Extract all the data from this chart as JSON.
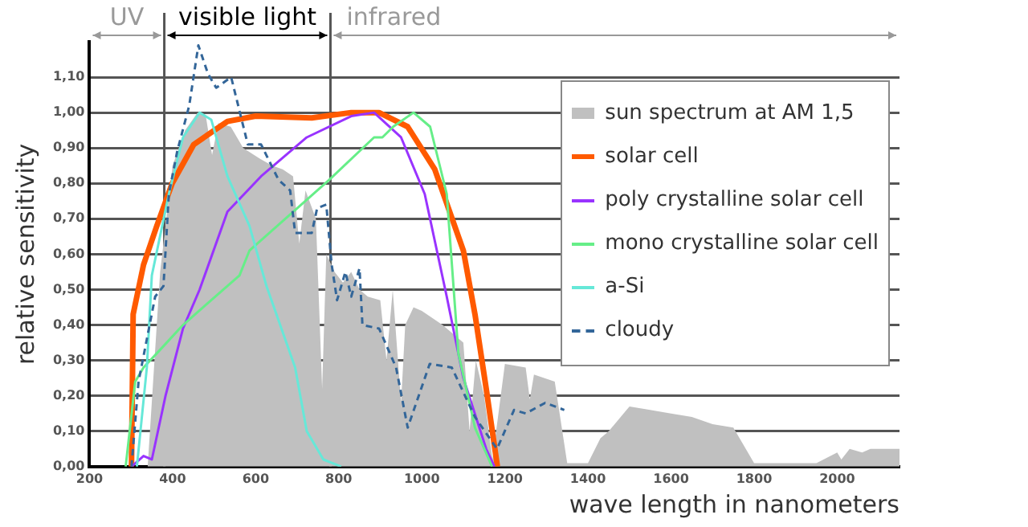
{
  "chart_data": {
    "type": "line",
    "xlabel": "wave length in nanometers",
    "ylabel": "relative sensitivity",
    "xlim": [
      200,
      2150
    ],
    "ylim": [
      0,
      1.2
    ],
    "xticks": [
      200,
      400,
      600,
      800,
      1000,
      1200,
      1400,
      1600,
      1800,
      2000
    ],
    "yticks": [
      {
        "value": 0,
        "label": "0,00"
      },
      {
        "value": 0.1,
        "label": "0,10"
      },
      {
        "value": 0.2,
        "label": "0,20"
      },
      {
        "value": 0.3,
        "label": "0,30"
      },
      {
        "value": 0.4,
        "label": "0,40"
      },
      {
        "value": 0.5,
        "label": "0,50"
      },
      {
        "value": 0.6,
        "label": "0,60"
      },
      {
        "value": 0.7,
        "label": "0,70"
      },
      {
        "value": 0.8,
        "label": "0,80"
      },
      {
        "value": 0.9,
        "label": "0,90"
      },
      {
        "value": 1.0,
        "label": "1,00"
      },
      {
        "value": 1.1,
        "label": "1,10"
      }
    ],
    "grid": "y",
    "legend": "top right",
    "marker": "none",
    "ref_lines": [
      {
        "axis": "x",
        "value": 380,
        "color": "#555555"
      },
      {
        "axis": "x",
        "value": 780,
        "color": "#555555"
      }
    ],
    "annotations": [
      "UV",
      "visible light",
      "infrared"
    ],
    "series": [
      {
        "name": "sun spectrum at AM 1,5",
        "type": "area",
        "color": "#c0c0c0",
        "x": [
          300,
          340,
          370,
          400,
          430,
          460,
          480,
          495,
          510,
          540,
          570,
          610,
          640,
          665,
          690,
          705,
          720,
          745,
          760,
          770,
          790,
          810,
          830,
          850,
          870,
          900,
          915,
          930,
          950,
          960,
          980,
          1000,
          1050,
          1100,
          1115,
          1130,
          1150,
          1170,
          1200,
          1250,
          1260,
          1270,
          1320,
          1350,
          1400,
          1430,
          1450,
          1500,
          1600,
          1650,
          1700,
          1750,
          1800,
          1950,
          2000,
          2010,
          2030,
          2060,
          2080,
          2150
        ],
        "values": [
          0,
          0,
          0.55,
          0.85,
          0.95,
          1.0,
          0.99,
          0.88,
          0.97,
          0.96,
          0.9,
          0.87,
          0.85,
          0.84,
          0.82,
          0.63,
          0.78,
          0.7,
          0.22,
          0.6,
          0.55,
          0.52,
          0.55,
          0.5,
          0.48,
          0.47,
          0.3,
          0.5,
          0.18,
          0.4,
          0.45,
          0.44,
          0.4,
          0.35,
          0.1,
          0.3,
          0.2,
          0.02,
          0.29,
          0.28,
          0.19,
          0.26,
          0.24,
          0.01,
          0.01,
          0.08,
          0.1,
          0.17,
          0.15,
          0.14,
          0.12,
          0.11,
          0.01,
          0.01,
          0.04,
          0.02,
          0.05,
          0.04,
          0.05,
          0.05
        ]
      },
      {
        "name": "solar cell",
        "type": "line",
        "color": "#ff5a00",
        "x": [
          301,
          305,
          330,
          362,
          399,
          451,
          532,
          600,
          735,
          830,
          897,
          966,
          1031,
          1100,
          1128,
          1155,
          1182
        ],
        "values": [
          0,
          0.43,
          0.57,
          0.68,
          0.8,
          0.91,
          0.975,
          0.99,
          0.985,
          1.0,
          1.0,
          0.96,
          0.84,
          0.61,
          0.43,
          0.22,
          0
        ]
      },
      {
        "name": "poly crystalline solar cell",
        "type": "line",
        "color": "#9933ff",
        "x": [
          301,
          330,
          350,
          383,
          425,
          465,
          532,
          613,
          723,
          830,
          885,
          950,
          1007,
          1060,
          1100,
          1155,
          1175
        ],
        "values": [
          0,
          0.03,
          0.02,
          0.2,
          0.39,
          0.5,
          0.72,
          0.82,
          0.93,
          0.99,
          1.0,
          0.93,
          0.77,
          0.48,
          0.25,
          0.05,
          0
        ]
      },
      {
        "name": "mono crystalline solar cell",
        "type": "line",
        "color": "#66ee88",
        "x": [
          287,
          310,
          330,
          370,
          425,
          561,
          585,
          777,
          885,
          905,
          931,
          980,
          1020,
          1060,
          1088,
          1128,
          1169
        ],
        "values": [
          0,
          0.24,
          0.28,
          0.33,
          0.4,
          0.54,
          0.61,
          0.81,
          0.93,
          0.93,
          0.96,
          1.0,
          0.96,
          0.77,
          0.32,
          0.11,
          0
        ]
      },
      {
        "name": "a-Si",
        "type": "line",
        "color": "#66e8d8",
        "x": [
          314,
          338,
          350,
          391,
          425,
          465,
          493,
          532,
          585,
          626,
          695,
          723,
          763,
          806
        ],
        "values": [
          0,
          0.28,
          0.54,
          0.77,
          0.93,
          1.0,
          0.98,
          0.82,
          0.68,
          0.51,
          0.28,
          0.1,
          0.02,
          0
        ]
      },
      {
        "name": "cloudy",
        "type": "line",
        "color": "#336699",
        "line_style": "dashed",
        "x": [
          301,
          318,
          358,
          378,
          391,
          411,
          440,
          462,
          485,
          505,
          541,
          581,
          613,
          655,
          683,
          695,
          735,
          748,
          770,
          783,
          796,
          816,
          830,
          850,
          857,
          897,
          938,
          966,
          1019,
          1072,
          1128,
          1181,
          1222,
          1250,
          1297,
          1343
        ],
        "values": [
          0,
          0.24,
          0.48,
          0.51,
          0.77,
          0.89,
          1.02,
          1.19,
          1.11,
          1.07,
          1.1,
          0.91,
          0.91,
          0.81,
          0.78,
          0.66,
          0.66,
          0.73,
          0.74,
          0.57,
          0.47,
          0.55,
          0.48,
          0.56,
          0.4,
          0.39,
          0.28,
          0.11,
          0.29,
          0.28,
          0.14,
          0.05,
          0.16,
          0.15,
          0.18,
          0.16
        ]
      }
    ]
  }
}
